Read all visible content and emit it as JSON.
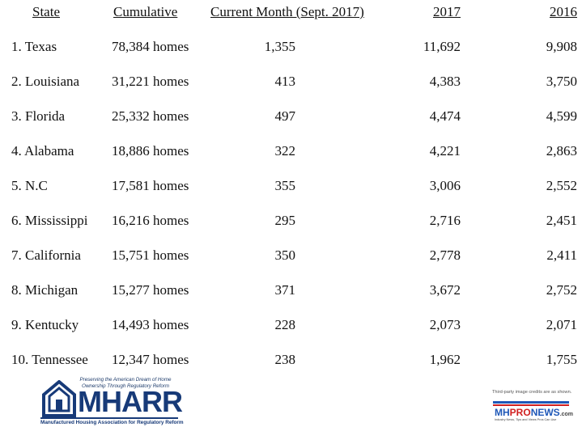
{
  "headers": {
    "state": "State",
    "cumulative": "Cumulative",
    "current_month": "Current Month (Sept. 2017)",
    "y2017": "2017",
    "y2016": "2016"
  },
  "rows": [
    {
      "state": "1.  Texas",
      "cumulative": "78,384 homes",
      "current": "1,355",
      "y2017": "11,692",
      "y2016": "9,908"
    },
    {
      "state": "2.  Louisiana",
      "cumulative": "31,221 homes",
      "current": "413",
      "y2017": "4,383",
      "y2016": "3,750"
    },
    {
      "state": "3.  Florida",
      "cumulative": "25,332 homes",
      "current": "497",
      "y2017": "4,474",
      "y2016": "4,599"
    },
    {
      "state": "4.  Alabama",
      "cumulative": "18,886 homes",
      "current": "322",
      "y2017": "4,221",
      "y2016": "2,863"
    },
    {
      "state": "5.  N.C",
      "cumulative": "17,581 homes",
      "current": "355",
      "y2017": "3,006",
      "y2016": "2,552"
    },
    {
      "state": "6.  Mississippi",
      "cumulative": "16,216 homes",
      "current": "295",
      "y2017": "2,716",
      "y2016": "2,451"
    },
    {
      "state": "7.  California",
      "cumulative": "15,751 homes",
      "current": "350",
      "y2017": "2,778",
      "y2016": "2,411"
    },
    {
      "state": "8.  Michigan",
      "cumulative": "15,277 homes",
      "current": "371",
      "y2017": "3,672",
      "y2016": "2,752"
    },
    {
      "state": "9.  Kentucky",
      "cumulative": "14,493 homes",
      "current": "228",
      "y2017": "2,073",
      "y2016": "2,071"
    },
    {
      "state": "10. Tennessee",
      "cumulative": "12,347 homes",
      "current": "238",
      "y2017": "1,962",
      "y2016": "1,755"
    }
  ],
  "mharr_logo": {
    "tagline": "Preserving the American Dream of Home Ownership Through Regulatory Reform",
    "wordmark": "MHARR",
    "full_name": "Manufactured Housing Association for Regulatory Reform",
    "icon": "house-icon",
    "color": "#173a78"
  },
  "credit_text": "Third-party image credits are as shown.",
  "mhpronews_logo": {
    "mh": "MH",
    "pro": "PRO",
    "news": "NEWS",
    "dotcom": ".com",
    "slogan": "Industry News, Tips and Views Pros Can Use",
    "blue": "#1f58b8",
    "red": "#d02020"
  }
}
